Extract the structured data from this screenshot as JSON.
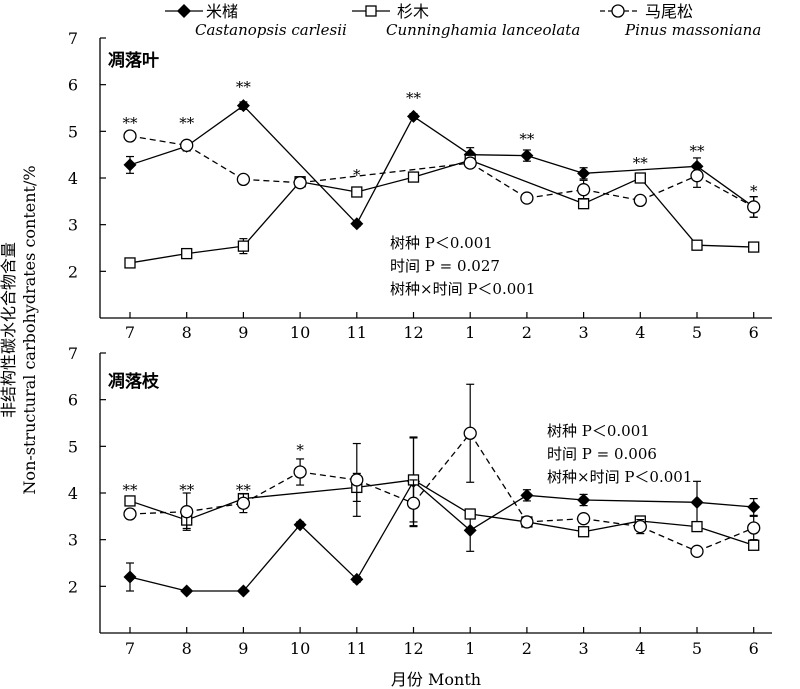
{
  "colors": {
    "ink": "#000000",
    "paper": "#ffffff"
  },
  "chart_data": [
    {
      "type": "line",
      "panel_title": "凋落叶",
      "xlabel": "",
      "x": [
        "7",
        "8",
        "9",
        "10",
        "11",
        "12",
        "1",
        "2",
        "3",
        "4",
        "5",
        "6"
      ],
      "ylim": [
        1,
        7
      ],
      "yticks": [
        2,
        3,
        4,
        5,
        6,
        7
      ],
      "grid": false,
      "legend": "top",
      "series": [
        {
          "key": "castanopsis",
          "name": "米槠",
          "latin": "Castanopsis carlesii",
          "marker": "diamond-filled",
          "dash": "solid",
          "values": [
            4.28,
            4.68,
            5.55,
            null,
            3.02,
            5.32,
            4.5,
            4.48,
            4.1,
            null,
            4.25,
            3.38
          ],
          "err": [
            0.18,
            0.1,
            0.08,
            0,
            0.05,
            0.06,
            0.15,
            0.12,
            0.12,
            0,
            0.18,
            0.22
          ]
        },
        {
          "key": "cunninghamia",
          "name": "杉木",
          "latin": "Cunninghamia lanceolata",
          "marker": "square-open",
          "dash": "solid",
          "values": [
            2.18,
            2.38,
            2.54,
            3.92,
            3.7,
            4.02,
            4.38,
            null,
            3.45,
            4.0,
            2.56,
            2.52
          ],
          "err": [
            0.04,
            0.06,
            0.16,
            0.08,
            0.1,
            0.1,
            0.08,
            0,
            0.1,
            0.05,
            0.05,
            0.08
          ]
        },
        {
          "key": "pinus",
          "name": "马尾松",
          "latin": "Pinus massoniana",
          "marker": "circle-open",
          "dash": "dashed",
          "values": [
            4.9,
            4.7,
            3.97,
            3.9,
            null,
            null,
            4.32,
            3.57,
            3.75,
            3.52,
            4.05,
            3.38
          ],
          "err": [
            0.05,
            0.1,
            0.05,
            0.06,
            0,
            0,
            0.08,
            0.05,
            0.2,
            0.05,
            0.25,
            0.22
          ]
        }
      ],
      "significance": [
        "**",
        "**",
        "**",
        "",
        "*",
        "**",
        "",
        "**",
        "",
        "**",
        "**",
        "*"
      ],
      "stats": [
        "树种 P＜0.001",
        "时间 P = 0.027",
        "树种×时间 P＜0.001"
      ]
    },
    {
      "type": "line",
      "panel_title": "凋落枝",
      "xlabel": "月份 Month",
      "x": [
        "7",
        "8",
        "9",
        "10",
        "11",
        "12",
        "1",
        "2",
        "3",
        "4",
        "5",
        "6"
      ],
      "ylim": [
        1,
        7
      ],
      "yticks": [
        2,
        3,
        4,
        5,
        6,
        7
      ],
      "grid": false,
      "legend": "top",
      "series": [
        {
          "key": "castanopsis",
          "name": "米槠",
          "marker": "diamond-filled",
          "dash": "solid",
          "values": [
            2.2,
            1.9,
            1.9,
            3.32,
            2.15,
            4.25,
            3.2,
            3.95,
            3.85,
            null,
            3.8,
            3.7
          ],
          "err": [
            0.3,
            0.03,
            0.03,
            0.06,
            0.06,
            0.95,
            0.45,
            0.12,
            0.12,
            0,
            0.45,
            0.18
          ]
        },
        {
          "key": "cunninghamia",
          "name": "杉木",
          "marker": "square-open",
          "dash": "solid",
          "values": [
            3.83,
            3.42,
            3.88,
            null,
            4.12,
            4.28,
            3.55,
            3.38,
            3.17,
            3.4,
            3.28,
            2.88
          ],
          "err": [
            0.05,
            0.18,
            0.06,
            0,
            0.3,
            0.9,
            0.08,
            0.06,
            0.05,
            0.05,
            0.05,
            0.05
          ]
        },
        {
          "key": "pinus",
          "name": "马尾松",
          "marker": "circle-open",
          "dash": "dashed",
          "values": [
            3.55,
            3.6,
            3.78,
            4.45,
            4.28,
            3.78,
            5.28,
            3.38,
            3.45,
            3.28,
            2.75,
            3.25
          ],
          "err": [
            0.05,
            0.4,
            0.2,
            0.28,
            0.78,
            0.5,
            1.05,
            0.06,
            0.05,
            0.15,
            0.05,
            0.25
          ]
        }
      ],
      "significance": [
        "**",
        "**",
        "**",
        "*",
        "",
        "",
        "",
        "",
        "",
        "",
        "",
        ""
      ],
      "stats": [
        "树种 P＜0.001",
        "时间 P = 0.006",
        "树种×时间  P＜0.001"
      ]
    }
  ],
  "legend": [
    {
      "key": "castanopsis",
      "name": "米槠",
      "latin": "Castanopsis carlesii"
    },
    {
      "key": "cunninghamia",
      "name": "杉木",
      "latin": "Cunninghamia lanceolata"
    },
    {
      "key": "pinus",
      "name": "马尾松",
      "latin": "Pinus massoniana"
    }
  ],
  "y_axis_label_zh": "非结构性碳水化合物含量",
  "y_axis_label_en": "Non-structural carbohydrates content/%"
}
